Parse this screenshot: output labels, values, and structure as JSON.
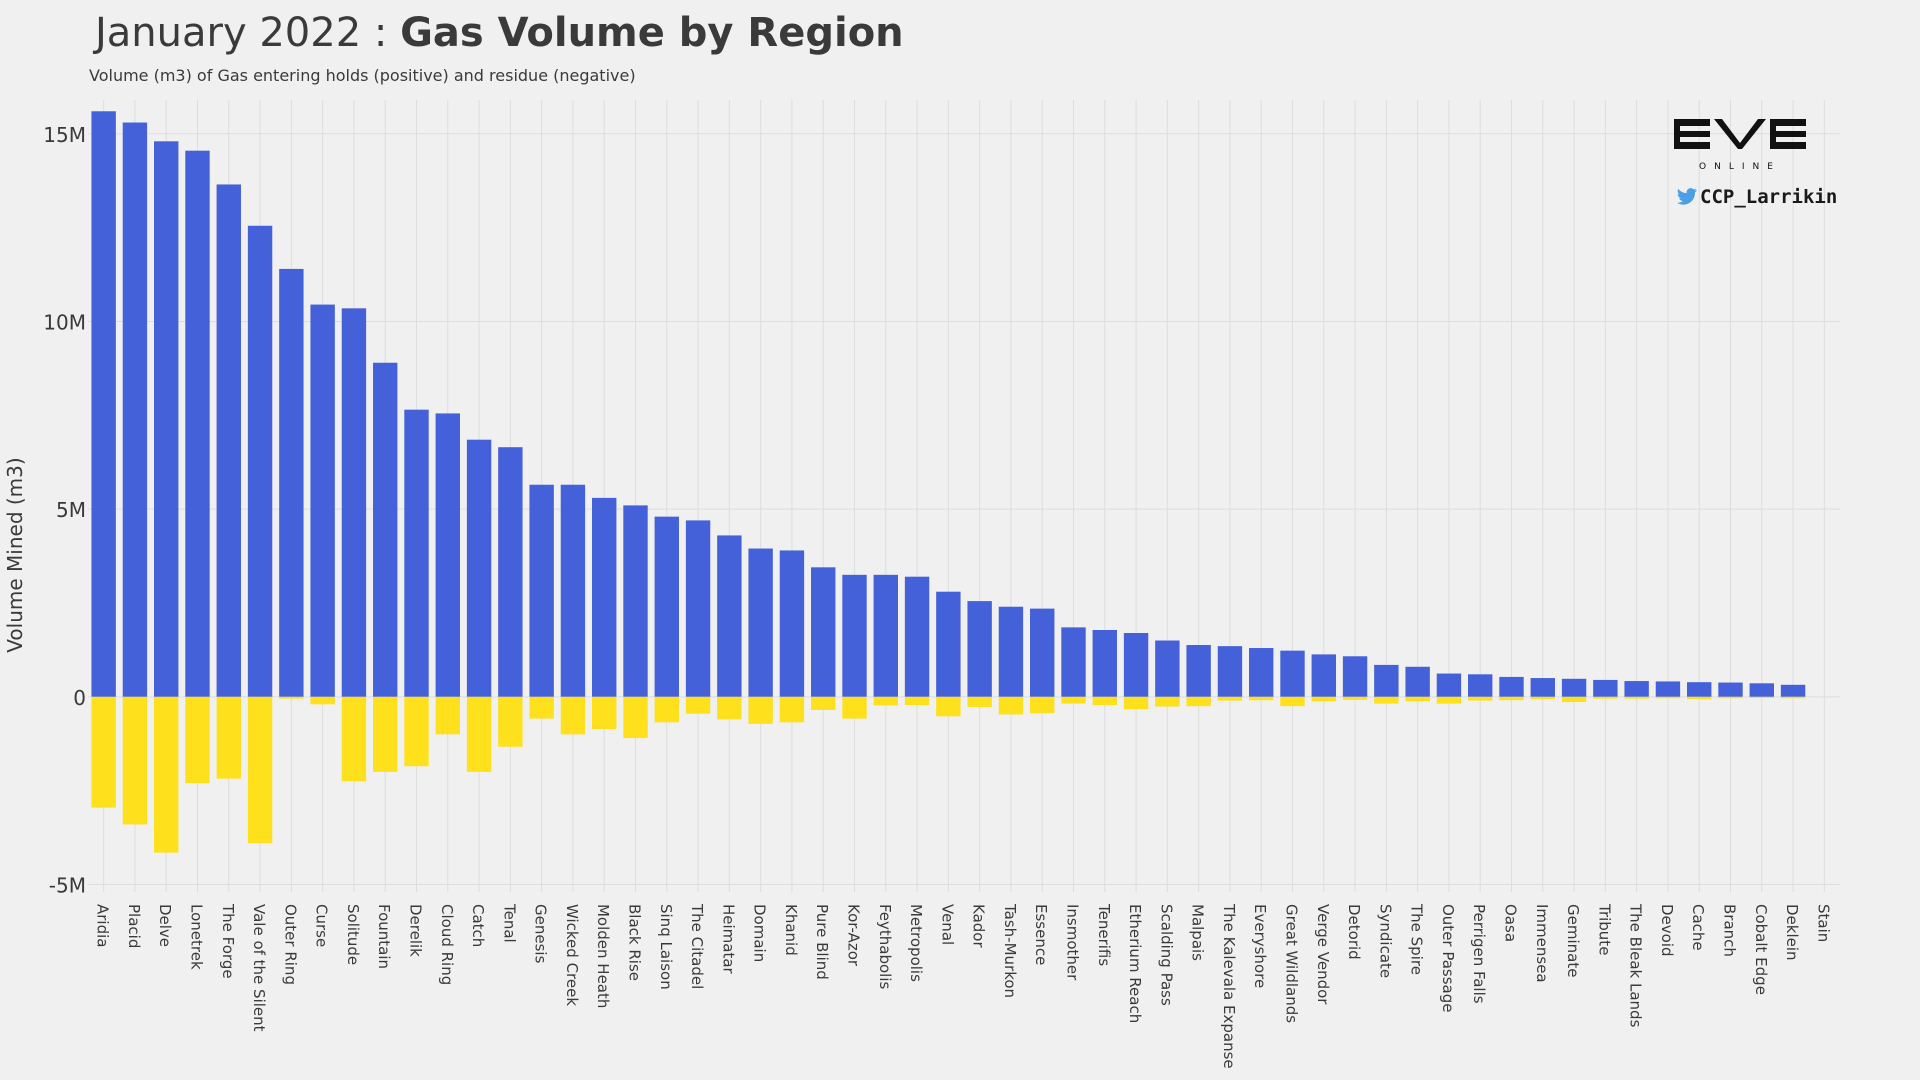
{
  "header": {
    "title_prefix": "January 2022 : ",
    "title_bold": "Gas Volume by Region",
    "subtitle": "Volume (m3) of Gas entering holds (positive) and residue (negative)"
  },
  "branding": {
    "logo_text": "EVE",
    "logo_subtext": "ONLINE",
    "handle": "CCP_Larrikin",
    "icons": [
      "eve-online-logo",
      "twitter-bird-icon"
    ]
  },
  "colors": {
    "positive": "#4561d9",
    "negative": "#ffe01c",
    "grid": "#dddddd",
    "text": "#3a3a3a"
  },
  "chart_data": {
    "type": "bar",
    "title": "January 2022 : Gas Volume by Region",
    "subtitle": "Volume (m3) of Gas entering holds (positive) and residue (negative)",
    "xlabel": "",
    "ylabel": "Volume Mined (m3)",
    "ylim": [
      -5200000,
      15900000
    ],
    "yticks": [
      -5000000,
      0,
      5000000,
      10000000,
      15000000
    ],
    "ytick_labels": [
      "-5M",
      "0",
      "5M",
      "10M",
      "15M"
    ],
    "grid": true,
    "legend": "none",
    "categories": [
      "Aridia",
      "Placid",
      "Delve",
      "Lonetrek",
      "The Forge",
      "Vale of the Silent",
      "Outer Ring",
      "Curse",
      "Solitude",
      "Fountain",
      "Derelik",
      "Cloud Ring",
      "Catch",
      "Tenal",
      "Genesis",
      "Wicked Creek",
      "Molden Heath",
      "Black Rise",
      "Sinq Laison",
      "The Citadel",
      "Heimatar",
      "Domain",
      "Khanid",
      "Pure Blind",
      "Kor-Azor",
      "Feythabolis",
      "Metropolis",
      "Venal",
      "Kador",
      "Tash-Murkon",
      "Essence",
      "Insmother",
      "Tenerifis",
      "Etherium Reach",
      "Scalding Pass",
      "Malpais",
      "The Kalevala Expanse",
      "Everyshore",
      "Great Wildlands",
      "Verge Vendor",
      "Detorid",
      "Syndicate",
      "The Spire",
      "Outer Passage",
      "Perrigen Falls",
      "Oasa",
      "Immensea",
      "Geminate",
      "Tribute",
      "The Bleak Lands",
      "Devoid",
      "Cache",
      "Branch",
      "Cobalt Edge",
      "Deklein",
      "Stain"
    ],
    "series": [
      {
        "name": "positive",
        "values": [
          15600000,
          15300000,
          14800000,
          14550000,
          13650000,
          12550000,
          11400000,
          10450000,
          10350000,
          8900000,
          7650000,
          7550000,
          6850000,
          6650000,
          5650000,
          5650000,
          5300000,
          5100000,
          4800000,
          4700000,
          4300000,
          3950000,
          3900000,
          3450000,
          3250000,
          3250000,
          3200000,
          2800000,
          2550000,
          2400000,
          2350000,
          1850000,
          1780000,
          1700000,
          1500000,
          1380000,
          1350000,
          1300000,
          1230000,
          1130000,
          1080000,
          850000,
          800000,
          620000,
          600000,
          530000,
          500000,
          480000,
          450000,
          420000,
          410000,
          390000,
          380000,
          360000,
          320000,
          0
        ]
      },
      {
        "name": "negative",
        "values": [
          -2950000,
          -3400000,
          -4150000,
          -2300000,
          -2180000,
          -3900000,
          -50000,
          -200000,
          -2250000,
          -2000000,
          -1850000,
          -1000000,
          -2000000,
          -1330000,
          -580000,
          -1000000,
          -860000,
          -1100000,
          -680000,
          -450000,
          -600000,
          -720000,
          -680000,
          -350000,
          -580000,
          -230000,
          -220000,
          -520000,
          -270000,
          -470000,
          -440000,
          -180000,
          -220000,
          -330000,
          -260000,
          -250000,
          -100000,
          -90000,
          -250000,
          -120000,
          -80000,
          -180000,
          -120000,
          -180000,
          -100000,
          -90000,
          -60000,
          -140000,
          -50000,
          -50000,
          -40000,
          -60000,
          -40000,
          -30000,
          -40000,
          0
        ]
      }
    ]
  }
}
